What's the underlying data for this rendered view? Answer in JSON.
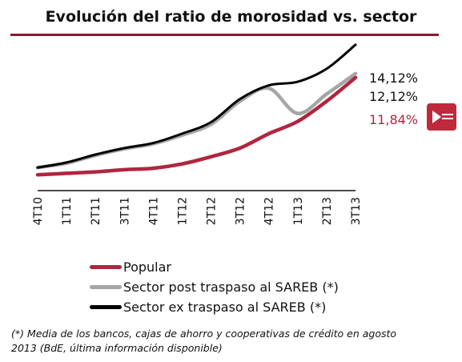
{
  "chart_data": {
    "type": "line",
    "title": "Evolución del ratio de morosidad vs. sector",
    "categories": [
      "4T10",
      "1T11",
      "2T11",
      "3T11",
      "4T11",
      "1T12",
      "2T12",
      "3T12",
      "4T12",
      "1T13",
      "2T13",
      "3T13"
    ],
    "ylim": [
      4,
      15
    ],
    "grid": false,
    "legend_position": "bottom",
    "series": [
      {
        "name": "Popular",
        "color": "#b0263f",
        "values": [
          5.1,
          5.2,
          5.3,
          5.45,
          5.55,
          5.85,
          6.35,
          6.95,
          7.95,
          8.8,
          10.2,
          11.84
        ],
        "end_label": "11,84%"
      },
      {
        "name": "Sector post traspaso al SAREB (*)",
        "color": "#a6a6a6",
        "values": [
          5.6,
          5.9,
          6.45,
          6.9,
          7.25,
          7.85,
          8.6,
          10.2,
          11.1,
          9.35,
          10.7,
          12.12
        ],
        "end_label": "12,12%"
      },
      {
        "name": "Sector ex traspaso al SAREB (*)",
        "color": "#000000",
        "values": [
          5.6,
          5.95,
          6.5,
          6.95,
          7.3,
          7.95,
          8.75,
          10.35,
          11.3,
          11.55,
          12.45,
          14.12
        ],
        "end_label": "14,12%"
      }
    ]
  },
  "footnote": {
    "line1": "(*) Media de los bancos, cajas de ahorro y cooperativas de crédito en agosto",
    "line2": "2013 (BdE, última información disponible)"
  }
}
